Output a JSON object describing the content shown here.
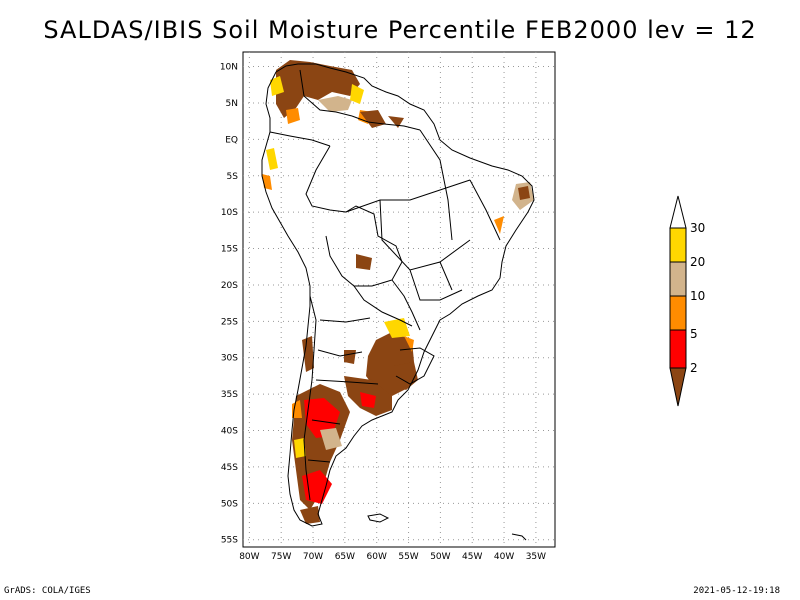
{
  "title": "SALDAS/IBIS Soil Moisture Percentile FEB2000 lev = 12",
  "footer_left": "GrADS: COLA/IGES",
  "footer_right": "2021-05-12-19:18",
  "axes": {
    "lat_labels": [
      "10N",
      "5N",
      "EQ",
      "5S",
      "10S",
      "15S",
      "20S",
      "25S",
      "30S",
      "35S",
      "40S",
      "45S",
      "50S",
      "55S"
    ],
    "lat_values": [
      10,
      5,
      0,
      -5,
      -10,
      -15,
      -20,
      -25,
      -30,
      -35,
      -40,
      -45,
      -50,
      -55
    ],
    "lon_labels": [
      "80W",
      "75W",
      "70W",
      "65W",
      "60W",
      "55W",
      "50W",
      "45W",
      "40W",
      "35W"
    ],
    "lon_values": [
      -80,
      -75,
      -70,
      -65,
      -60,
      -55,
      -50,
      -45,
      -40,
      -35
    ],
    "lon_range": [
      -81,
      -32
    ],
    "lat_range": [
      -56,
      12
    ],
    "grid": true
  },
  "legend": {
    "levels": [
      "30",
      "20",
      "10",
      "5",
      "2"
    ],
    "colors": {
      "above_30": "#ffffff",
      "20_30": "#ffd700",
      "10_20": "#d2b48c",
      "5_10": "#ff8c00",
      "2_5": "#ff0000",
      "below_2": "#8b4513"
    }
  }
}
